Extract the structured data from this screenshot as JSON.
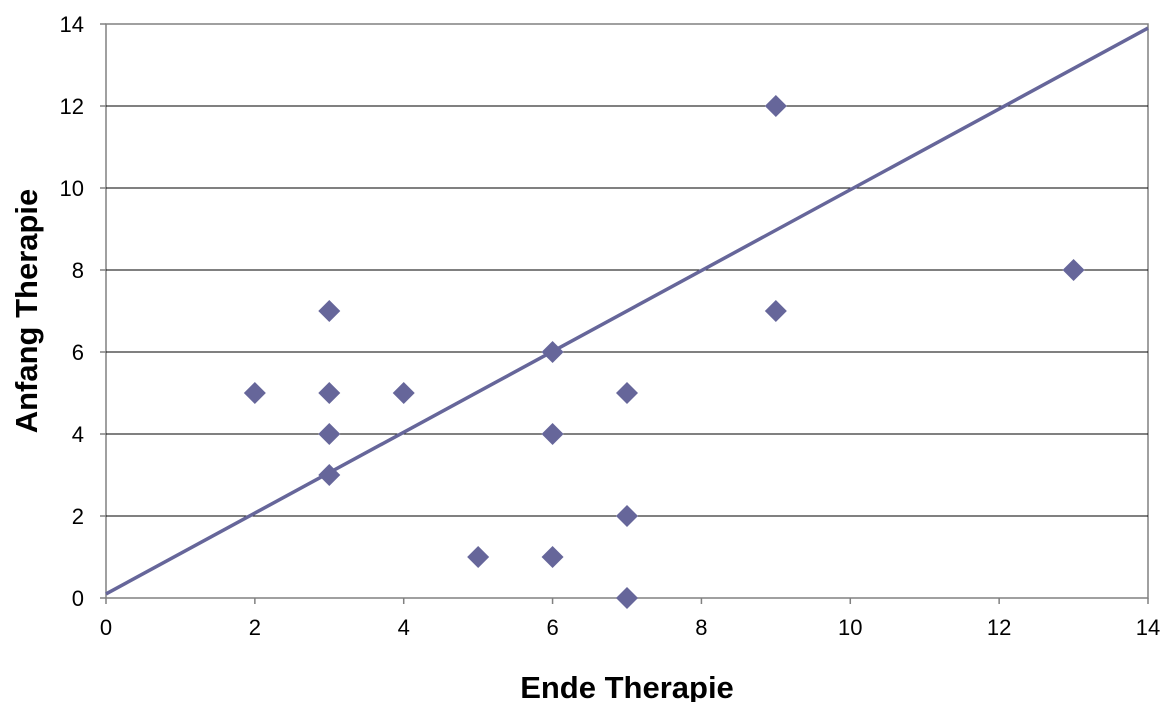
{
  "chart_data": {
    "type": "scatter",
    "title": "",
    "xlabel": "Ende Therapie",
    "ylabel": "Anfang Therapie",
    "xlim": [
      0,
      14
    ],
    "ylim": [
      0,
      14
    ],
    "xticks": [
      0,
      2,
      4,
      6,
      8,
      10,
      12,
      14
    ],
    "yticks": [
      0,
      2,
      4,
      6,
      8,
      10,
      12,
      14
    ],
    "grid": {
      "horizontal": true,
      "vertical": false
    },
    "legend": "none",
    "series": [
      {
        "marker": "diamond",
        "color": "#66669A",
        "points": [
          {
            "x": 2,
            "y": 5
          },
          {
            "x": 3,
            "y": 7
          },
          {
            "x": 3,
            "y": 5
          },
          {
            "x": 3,
            "y": 4
          },
          {
            "x": 3,
            "y": 3
          },
          {
            "x": 4,
            "y": 5
          },
          {
            "x": 5,
            "y": 1
          },
          {
            "x": 6,
            "y": 6
          },
          {
            "x": 6,
            "y": 4
          },
          {
            "x": 6,
            "y": 1
          },
          {
            "x": 7,
            "y": 5
          },
          {
            "x": 7,
            "y": 2
          },
          {
            "x": 7,
            "y": 0
          },
          {
            "x": 9,
            "y": 12
          },
          {
            "x": 9,
            "y": 7
          },
          {
            "x": 13,
            "y": 8
          }
        ]
      }
    ],
    "trendline": {
      "type": "linear",
      "color": "#66669A",
      "start": {
        "x": 0,
        "y": 0.1
      },
      "end": {
        "x": 14,
        "y": 13.9
      }
    }
  }
}
